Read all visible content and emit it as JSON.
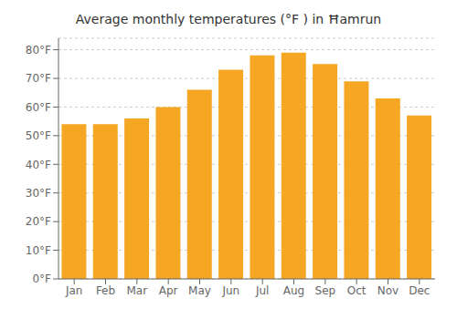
{
  "chart_data": {
    "type": "bar",
    "title": "Average monthly temperatures (°F ) in Ħamrun",
    "categories": [
      "Jan",
      "Feb",
      "Mar",
      "Apr",
      "May",
      "Jun",
      "Jul",
      "Aug",
      "Sep",
      "Oct",
      "Nov",
      "Dec"
    ],
    "values": [
      54,
      54,
      56,
      60,
      66,
      73,
      78,
      79,
      75,
      69,
      63,
      57
    ],
    "color": "#F5A623",
    "ylim": [
      0,
      84
    ],
    "yticks": [
      {
        "value": 0,
        "label": "0°F"
      },
      {
        "value": 10,
        "label": "10°F"
      },
      {
        "value": 20,
        "label": "20°F"
      },
      {
        "value": 30,
        "label": "30°F"
      },
      {
        "value": 40,
        "label": "40°F"
      },
      {
        "value": 50,
        "label": "50°F"
      },
      {
        "value": 60,
        "label": "60°F"
      },
      {
        "value": 70,
        "label": "70°F"
      },
      {
        "value": 80,
        "label": "80°F"
      }
    ],
    "grid": true
  }
}
